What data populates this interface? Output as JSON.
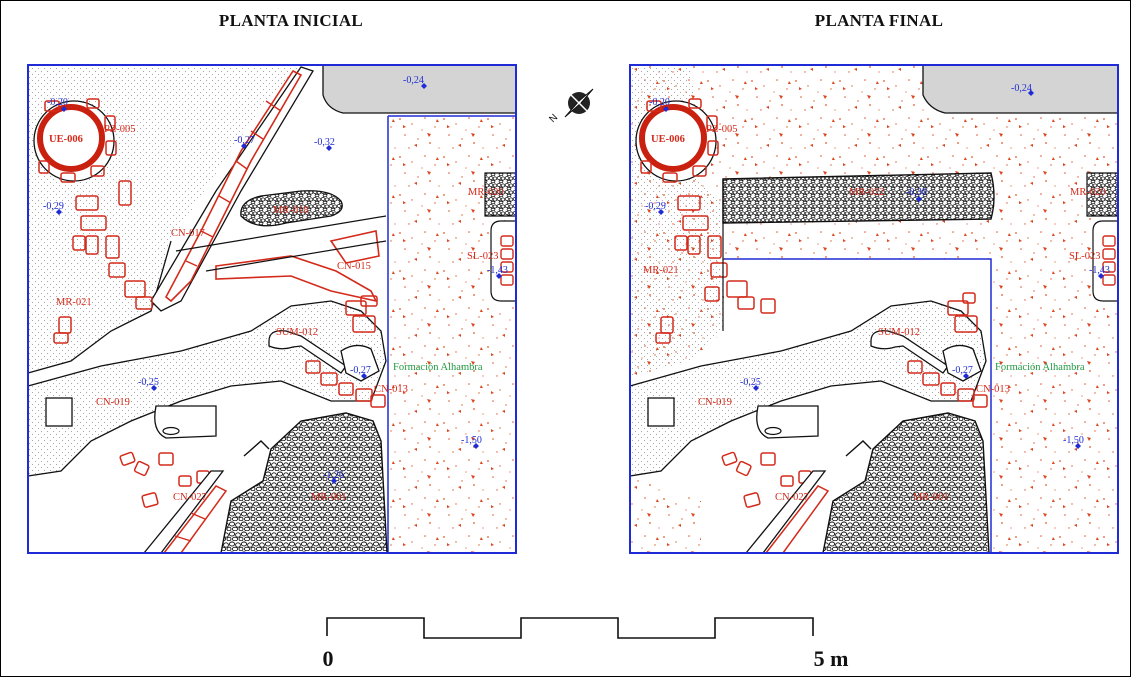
{
  "titles": {
    "left": "PLANTA INICIAL",
    "right": "PLANTA FINAL"
  },
  "labels_left": {
    "ue006": "UE-006",
    "pz005": "PZ-005",
    "mr021": "MR-021",
    "cn017": "CN-017",
    "cn015": "CN-015",
    "sum012": "SUM-012",
    "cn013": "CN-013",
    "cn019": "CN-019",
    "cn027": "CN-027",
    "mr020": "MR-020",
    "sl023": "SL-023",
    "mr_mid": "MR-018",
    "mr_bottom": "MR-001",
    "formacion": "Formación Alhambra"
  },
  "labels_right": {
    "ue006": "UE-006",
    "pz005": "PZ-005",
    "mr021": "MR-021",
    "mr022": "MR-022",
    "sum012": "SUM-012",
    "cn013": "CN-013",
    "cn019": "CN-019",
    "cn027": "CN-027",
    "mr020": "MR-020",
    "sl023": "SL-023",
    "mr_bottom": "MR-001",
    "formacion": "Formación Alhambra"
  },
  "elevations_left": {
    "e1": "-0,20",
    "e2": "-0,24",
    "e3": "-0,27",
    "e4": "-0,32",
    "e5": "-0,29",
    "e6": "-0,25",
    "e7": "-0,27",
    "e8": "-1,43",
    "e9": "-1,50",
    "e10": "-1,26"
  },
  "elevations_right": {
    "e1": "-0,20",
    "e2": "-0,24",
    "e5": "-0,29",
    "e6": "-0,25",
    "e7": "-0,27",
    "e8": "-1,43",
    "e9": "-1,50",
    "e11": "-0,30"
  },
  "scale": {
    "start_label": "0",
    "end_label": "5 m"
  },
  "colors": {
    "plan_border": "#1f2bd6",
    "structure_red": "#d42a1a",
    "elevation_blue": "#1f2bd6",
    "geology_green": "#229944",
    "fill_gray": "#d9d9d9"
  }
}
